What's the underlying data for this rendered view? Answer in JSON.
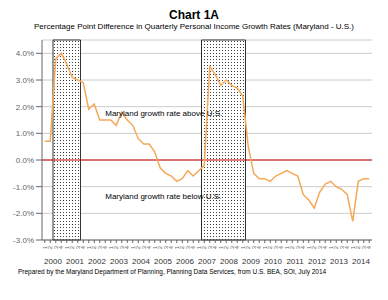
{
  "chart_data": {
    "type": "line",
    "title": "Chart 1A",
    "subtitle": "Percentage Point Difference in Quarterly Personal Income Growth Rates (Maryland - U.S.)",
    "footer": "Prepared by the Maryland Department of Planning, Planning Data Services, from U.S. BEA, SOI, July 2014",
    "categories": [
      "1",
      "2",
      "3",
      "4",
      "1",
      "2",
      "3",
      "4",
      "1",
      "2",
      "3",
      "4",
      "1",
      "2",
      "3",
      "4",
      "1",
      "2",
      "3",
      "4",
      "1",
      "2",
      "3",
      "4",
      "1",
      "2",
      "3",
      "4",
      "1",
      "2",
      "3",
      "4",
      "1",
      "2",
      "3",
      "4",
      "1",
      "2",
      "3",
      "4",
      "1",
      "2",
      "3",
      "4",
      "1",
      "2",
      "3",
      "4",
      "1",
      "2",
      "3",
      "4",
      "1",
      "2",
      "3",
      "4",
      "1",
      "2",
      "3",
      "4"
    ],
    "year_labels": [
      "2000",
      "2001",
      "2002",
      "2003",
      "2004",
      "2005",
      "2006",
      "2007",
      "2008",
      "2009",
      "2010",
      "2011",
      "2012",
      "2013",
      "2014"
    ],
    "values": [
      0.7,
      0.7,
      3.8,
      4.0,
      3.6,
      3.1,
      3.0,
      2.9,
      1.9,
      2.1,
      1.5,
      1.5,
      1.5,
      1.3,
      1.8,
      1.5,
      1.3,
      0.8,
      0.6,
      0.6,
      0.3,
      -0.3,
      -0.5,
      -0.6,
      -0.8,
      -0.7,
      -0.4,
      -0.6,
      -0.4,
      -0.2,
      3.5,
      3.2,
      2.8,
      3.0,
      2.8,
      2.7,
      2.4,
      0.5,
      -0.5,
      -0.7,
      -0.7,
      -0.8,
      -0.6,
      -0.5,
      -0.4,
      -0.5,
      -0.6,
      -1.3,
      -1.5,
      -1.8,
      -1.2,
      -0.9,
      -0.8,
      -1.0,
      -1.1,
      -1.3,
      -2.3,
      -0.8,
      -0.7,
      -0.7
    ],
    "color": "#F5A857",
    "ylim": [
      -3.0,
      4.5
    ],
    "yticks": [
      {
        "value": -3.0,
        "label": "-3.0%"
      },
      {
        "value": -2.0,
        "label": "-2.0%"
      },
      {
        "value": -1.0,
        "label": "-1.0%"
      },
      {
        "value": 0.0,
        "label": "0.0%"
      },
      {
        "value": 1.0,
        "label": "1.0%"
      },
      {
        "value": 2.0,
        "label": "2.0%"
      },
      {
        "value": 3.0,
        "label": "3.0%"
      },
      {
        "value": 4.0,
        "label": "4.0%"
      }
    ],
    "grid": true,
    "reference_line": {
      "y": 0,
      "color": "#CC0000"
    },
    "shaded_ranges": [
      {
        "start": 2,
        "end": 6
      },
      {
        "start": 29,
        "end": 36
      }
    ],
    "annotations": [
      {
        "text": "Maryland growth rate above U.S.",
        "x": 11,
        "y": 1.65
      },
      {
        "text": "Maryland growth rate below U.S.",
        "x": 11,
        "y": -1.45
      }
    ]
  }
}
